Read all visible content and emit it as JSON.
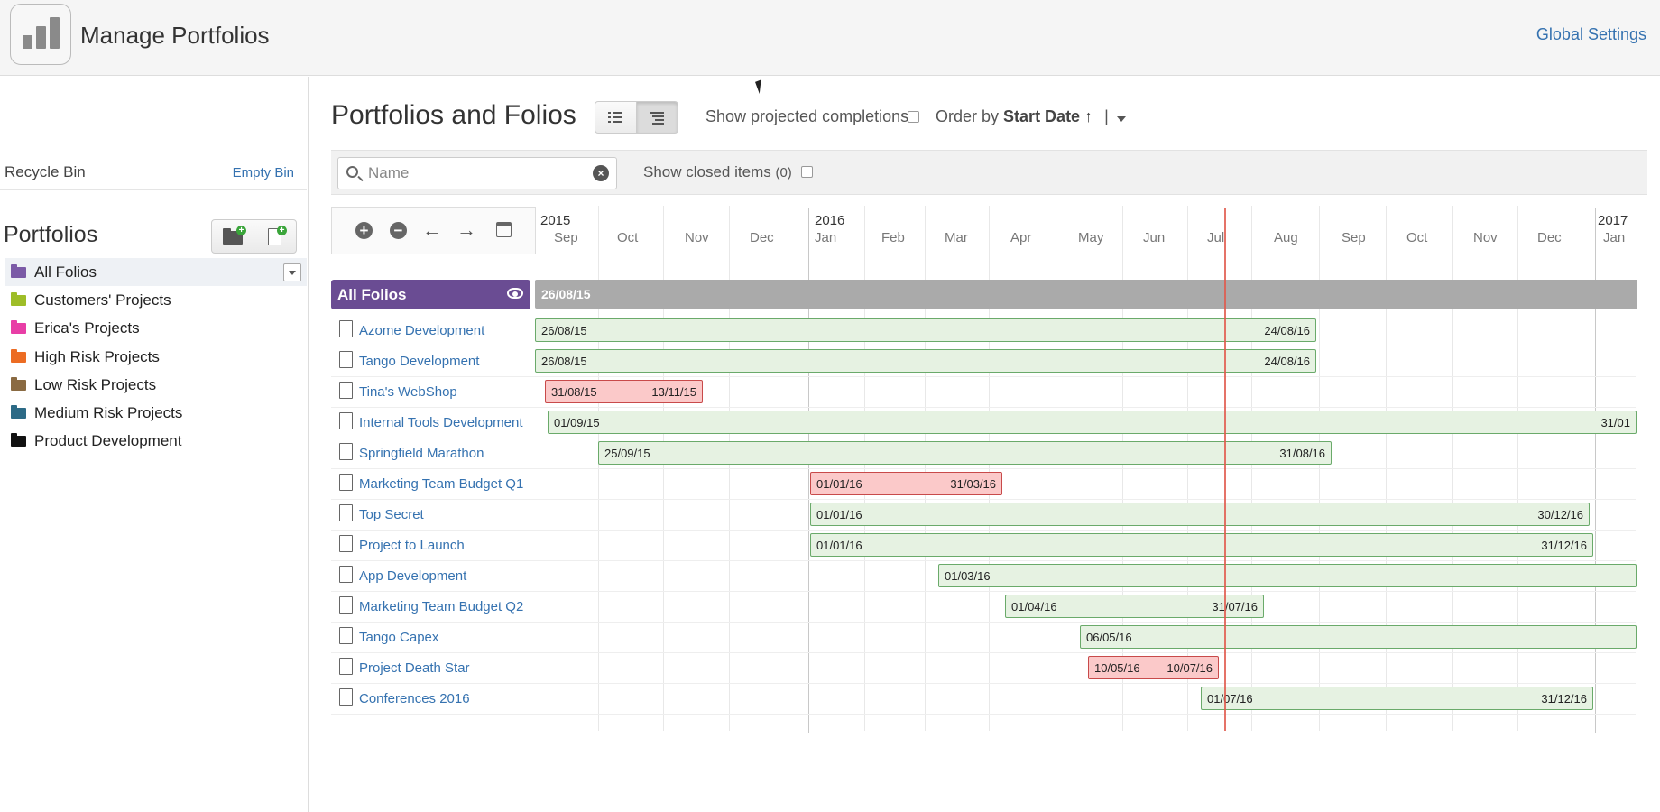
{
  "header": {
    "title": "Manage Portfolios",
    "global_settings": "Global Settings"
  },
  "sidebar": {
    "recycle_bin": "Recycle Bin",
    "empty_bin": "Empty Bin",
    "portfolios_heading": "Portfolios",
    "items": [
      {
        "label": "All Folios",
        "color": "#7b5aa6"
      },
      {
        "label": "Customers' Projects",
        "color": "#9ebd28"
      },
      {
        "label": "Erica's Projects",
        "color": "#e83ea6"
      },
      {
        "label": "High Risk Projects",
        "color": "#ec6c23"
      },
      {
        "label": "Low Risk Projects",
        "color": "#8a6a42"
      },
      {
        "label": "Medium Risk Projects",
        "color": "#2c6a86"
      },
      {
        "label": "Product Development",
        "color": "#111111"
      }
    ]
  },
  "main": {
    "title": "Portfolios and Folios",
    "show_projected": "Show projected completions",
    "order_by_prefix": "Order by",
    "order_by_field": "Start Date ↑",
    "order_by_sep": "|",
    "search_placeholder": "Name",
    "search_value": "",
    "show_closed": "Show closed items",
    "show_closed_count": "(0)"
  },
  "timeline": {
    "years": [
      "2015",
      "2016",
      "2017"
    ],
    "months": [
      "Sep",
      "Oct",
      "Nov",
      "Dec",
      "Jan",
      "Feb",
      "Mar",
      "Apr",
      "May",
      "Jun",
      "Jul",
      "Aug",
      "Sep",
      "Oct",
      "Nov",
      "Dec",
      "Jan"
    ]
  },
  "group": {
    "title": "All Folios",
    "start": "26/08/15"
  },
  "rows": [
    {
      "name": "Azome Development",
      "start": "26/08/15",
      "end": "24/08/16",
      "status": "ok"
    },
    {
      "name": "Tango Development",
      "start": "26/08/15",
      "end": "24/08/16",
      "status": "ok"
    },
    {
      "name": "Tina's WebShop",
      "start": "31/08/15",
      "end": "13/11/15",
      "status": "risk"
    },
    {
      "name": "Internal Tools Development",
      "start": "01/09/15",
      "end": "31/01",
      "status": "ok"
    },
    {
      "name": "Springfield Marathon",
      "start": "25/09/15",
      "end": "31/08/16",
      "status": "ok"
    },
    {
      "name": "Marketing Team Budget Q1",
      "start": "01/01/16",
      "end": "31/03/16",
      "status": "risk"
    },
    {
      "name": "Top Secret",
      "start": "01/01/16",
      "end": "30/12/16",
      "status": "ok"
    },
    {
      "name": "Project to Launch",
      "start": "01/01/16",
      "end": "31/12/16",
      "status": "ok"
    },
    {
      "name": "App Development",
      "start": "01/03/16",
      "end": "",
      "status": "ok"
    },
    {
      "name": "Marketing Team Budget Q2",
      "start": "01/04/16",
      "end": "31/07/16",
      "status": "ok"
    },
    {
      "name": "Tango Capex",
      "start": "06/05/16",
      "end": "",
      "status": "ok"
    },
    {
      "name": "Project Death Star",
      "start": "10/05/16",
      "end": "10/07/16",
      "status": "risk"
    },
    {
      "name": "Conferences 2016",
      "start": "01/07/16",
      "end": "31/12/16",
      "status": "ok"
    }
  ],
  "colors": {
    "ok_bar": "#e6f2e2",
    "risk_bar": "#fbc9c9",
    "group_header": "#6a4c93",
    "today_line": "#e05a4e",
    "link": "#3572b0"
  }
}
